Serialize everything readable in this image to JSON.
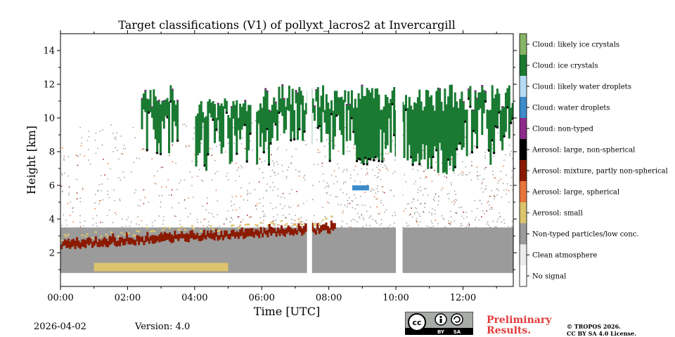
{
  "chart_data": {
    "type": "heatmap",
    "title": "Target classifications (V1) of pollyxt_lacros2 at Invercargill",
    "xlabel": "Time [UTC]",
    "ylabel": "Height [km]",
    "x_unit": "hours UTC",
    "xlim": [
      0,
      13.5
    ],
    "ylim": [
      0,
      15
    ],
    "x_ticks": [
      0,
      2,
      4,
      6,
      8,
      10,
      12
    ],
    "x_tick_labels": [
      "00:00",
      "02:00",
      "04:00",
      "06:00",
      "08:00",
      "10:00",
      "12:00"
    ],
    "y_ticks": [
      2,
      4,
      6,
      8,
      10,
      12,
      14
    ],
    "y_tick_labels": [
      "2",
      "4",
      "6",
      "8",
      "10",
      "12",
      "14"
    ],
    "classes": [
      {
        "label": "No signal",
        "color": "#ffffff"
      },
      {
        "label": "Clean atmosphere",
        "color": "#ececec"
      },
      {
        "label": "Non-typed particles/low conc.",
        "color": "#9b9b9b"
      },
      {
        "label": "Aerosol: small",
        "color": "#dcc36e"
      },
      {
        "label": "Aerosol: large, spherical",
        "color": "#e8743b"
      },
      {
        "label": "Aerosol: mixture, partly non-spherical",
        "color": "#8b1a00"
      },
      {
        "label": "Aerosol: large, non-spherical",
        "color": "#000000"
      },
      {
        "label": "Cloud: non-typed",
        "color": "#8b2b8b"
      },
      {
        "label": "Cloud: water droplets",
        "color": "#3d8ccb"
      },
      {
        "label": "Cloud: likely water droplets",
        "color": "#b6dcf5"
      },
      {
        "label": "Cloud: ice crystals",
        "color": "#1a7a32"
      },
      {
        "label": "Cloud: likely ice crystals",
        "color": "#86b565"
      }
    ],
    "regions": [
      {
        "class": "Non-typed particles/low conc.",
        "t_start": 0,
        "t_end": 13.5,
        "h_bottom": 0.8,
        "h_top": 3.5
      },
      {
        "class": "Aerosol: mixture, partly non-spherical",
        "t_start": 0,
        "t_end": 8.2,
        "h_bottom": 2.0,
        "h_top": 3.3
      },
      {
        "class": "Aerosol: small",
        "t_start": 1.0,
        "t_end": 5.0,
        "h_bottom": 0.9,
        "h_top": 1.4
      },
      {
        "class": "Cloud: ice crystals",
        "t_start": 2.4,
        "t_end": 13.5,
        "h_bottom": 6.5,
        "h_top": 12.1
      },
      {
        "class": "Cloud: water droplets",
        "t_start": 8.7,
        "t_end": 9.2,
        "h_bottom": 5.7,
        "h_top": 6.0
      }
    ],
    "data_gaps": [
      {
        "t_start": 7.35,
        "t_end": 7.5
      },
      {
        "t_start": 10.0,
        "t_end": 10.2
      }
    ]
  },
  "footer": {
    "date": "2026-04-02",
    "version": "Version: 4.0",
    "preliminary_line1": "Preliminary",
    "preliminary_line2": "Results.",
    "copyright": "© TROPOS 2026.",
    "license": "CC BY SA 4.0 License.",
    "cc_text": "cc",
    "cc_by": "BY",
    "cc_sa": "SA",
    "prelim_color": "#e23a3a"
  }
}
